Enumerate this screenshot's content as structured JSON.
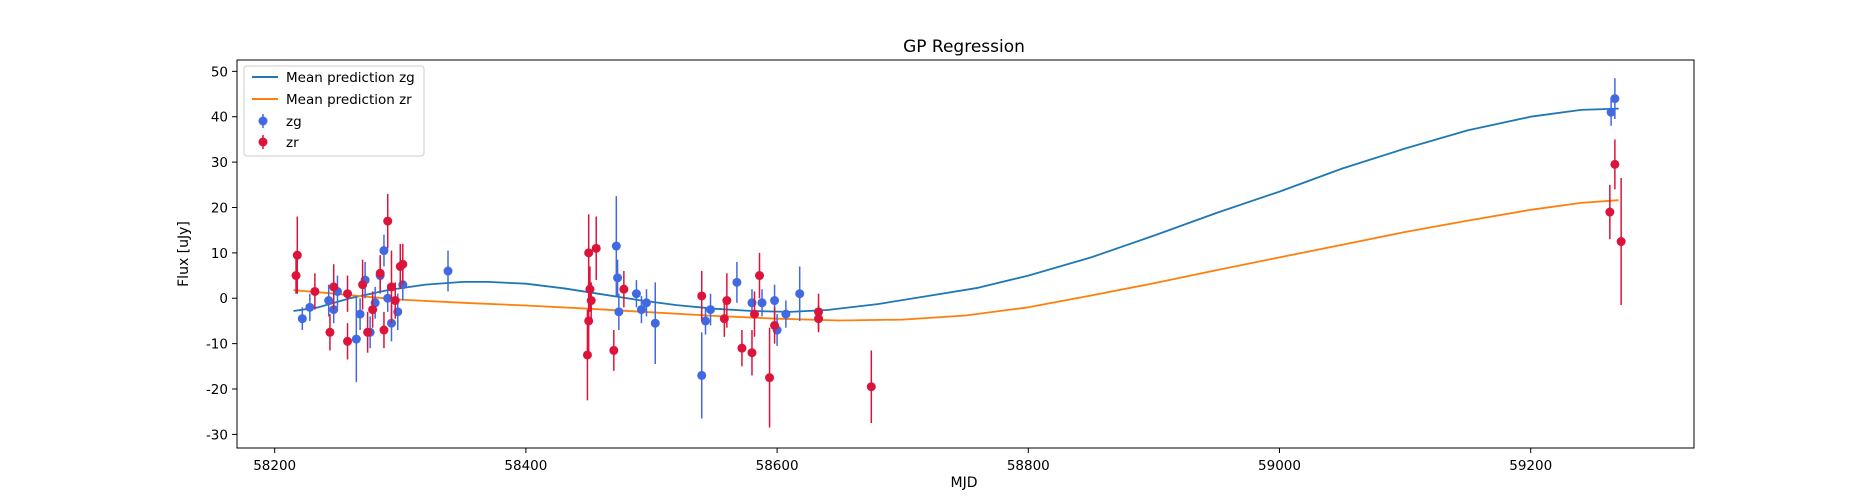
{
  "chart_data": {
    "type": "scatter",
    "title": "GP Regression",
    "xlabel": "MJD",
    "ylabel": "Flux [uJy]",
    "xlim": [
      58170,
      59330
    ],
    "ylim": [
      -33,
      52.5
    ],
    "xticks": [
      58200,
      58400,
      58600,
      58800,
      59000,
      59200
    ],
    "yticks": [
      -30,
      -20,
      -10,
      0,
      10,
      20,
      30,
      40,
      50
    ],
    "grid": false,
    "legend_position": "top-left",
    "colors": {
      "zg_points": "#4169e1",
      "zr_points": "#dc143c",
      "zg_line": "#1f77b4",
      "zr_line": "#ff7f0e"
    },
    "lines": [
      {
        "name": "Mean prediction zg",
        "color": "#1f77b4",
        "x": [
          58215,
          58235,
          58260,
          58290,
          58320,
          58350,
          58370,
          58400,
          58430,
          58460,
          58490,
          58520,
          58550,
          58580,
          58610,
          58640,
          58680,
          58720,
          58760,
          58800,
          58850,
          58900,
          58950,
          59000,
          59050,
          59100,
          59150,
          59200,
          59240,
          59270
        ],
        "y": [
          -2.8,
          -2.0,
          0.0,
          1.8,
          3.0,
          3.6,
          3.6,
          3.2,
          2.2,
          0.9,
          -0.4,
          -1.5,
          -2.3,
          -2.8,
          -3.0,
          -2.6,
          -1.3,
          0.5,
          2.3,
          5.0,
          9.0,
          13.8,
          18.8,
          23.5,
          28.6,
          33.0,
          37.0,
          40.0,
          41.5,
          41.8
        ]
      },
      {
        "name": "Mean prediction zr",
        "color": "#ff7f0e",
        "x": [
          58215,
          58240,
          58270,
          58300,
          58350,
          58400,
          58450,
          58500,
          58550,
          58600,
          58650,
          58700,
          58750,
          58800,
          58850,
          58900,
          58950,
          59000,
          59050,
          59100,
          59150,
          59200,
          59240,
          59270
        ],
        "y": [
          1.8,
          1.2,
          0.4,
          -0.3,
          -1.0,
          -1.6,
          -2.3,
          -3.1,
          -3.9,
          -4.5,
          -4.9,
          -4.7,
          -3.8,
          -2.0,
          0.6,
          3.3,
          6.2,
          9.0,
          11.8,
          14.6,
          17.1,
          19.5,
          21.0,
          21.6
        ]
      }
    ],
    "series": [
      {
        "name": "zg",
        "color": "#4169e1",
        "points": [
          {
            "x": 58222,
            "y": -4.5,
            "err": 2.5
          },
          {
            "x": 58228,
            "y": -2.0,
            "err": 3.0
          },
          {
            "x": 58243,
            "y": -0.5,
            "err": 3.5
          },
          {
            "x": 58247,
            "y": -2.5,
            "err": 3.0
          },
          {
            "x": 58250,
            "y": 1.5,
            "err": 3.5
          },
          {
            "x": 58265,
            "y": -9.0,
            "err": 9.5
          },
          {
            "x": 58268,
            "y": -3.5,
            "err": 3.5
          },
          {
            "x": 58272,
            "y": 4.0,
            "err": 4.0
          },
          {
            "x": 58276,
            "y": -7.5,
            "err": 3.5
          },
          {
            "x": 58280,
            "y": -1.0,
            "err": 3.5
          },
          {
            "x": 58284,
            "y": 5.0,
            "err": 4.0
          },
          {
            "x": 58287,
            "y": 10.5,
            "err": 3.5
          },
          {
            "x": 58290,
            "y": 0.0,
            "err": 3.0
          },
          {
            "x": 58293,
            "y": -5.5,
            "err": 4.0
          },
          {
            "x": 58298,
            "y": -3.0,
            "err": 4.0
          },
          {
            "x": 58302,
            "y": 3.0,
            "err": 3.5
          },
          {
            "x": 58338,
            "y": 6.0,
            "err": 4.5
          },
          {
            "x": 58472,
            "y": 11.5,
            "err": 11.0
          },
          {
            "x": 58473,
            "y": 4.5,
            "err": 4.0
          },
          {
            "x": 58474,
            "y": -3.0,
            "err": 4.0
          },
          {
            "x": 58488,
            "y": 1.0,
            "err": 3.0
          },
          {
            "x": 58492,
            "y": -2.5,
            "err": 3.0
          },
          {
            "x": 58496,
            "y": -1.0,
            "err": 3.0
          },
          {
            "x": 58503,
            "y": -5.5,
            "err": 9.0
          },
          {
            "x": 58540,
            "y": -17.0,
            "err": 9.5
          },
          {
            "x": 58543,
            "y": -5.0,
            "err": 3.0
          },
          {
            "x": 58547,
            "y": -2.5,
            "err": 3.5
          },
          {
            "x": 58568,
            "y": 3.5,
            "err": 4.5
          },
          {
            "x": 58580,
            "y": -1.0,
            "err": 3.0
          },
          {
            "x": 58588,
            "y": -1.0,
            "err": 3.0
          },
          {
            "x": 58598,
            "y": -0.5,
            "err": 3.5
          },
          {
            "x": 58600,
            "y": -7.0,
            "err": 3.5
          },
          {
            "x": 58607,
            "y": -3.5,
            "err": 3.0
          },
          {
            "x": 58618,
            "y": 1.0,
            "err": 6.0
          },
          {
            "x": 59264,
            "y": 41.0,
            "err": 3.0
          },
          {
            "x": 59267,
            "y": 44.0,
            "err": 4.5
          }
        ]
      },
      {
        "name": "zr",
        "color": "#dc143c",
        "points": [
          {
            "x": 58217,
            "y": 5.0,
            "err": 4.0
          },
          {
            "x": 58218,
            "y": 9.5,
            "err": 8.5
          },
          {
            "x": 58232,
            "y": 1.5,
            "err": 4.0
          },
          {
            "x": 58244,
            "y": -7.5,
            "err": 4.0
          },
          {
            "x": 58247,
            "y": 2.5,
            "err": 5.0
          },
          {
            "x": 58258,
            "y": -9.5,
            "err": 4.0
          },
          {
            "x": 58258,
            "y": 1.0,
            "err": 4.0
          },
          {
            "x": 58270,
            "y": 3.0,
            "err": 5.5
          },
          {
            "x": 58274,
            "y": -7.5,
            "err": 4.5
          },
          {
            "x": 58278,
            "y": -2.5,
            "err": 4.0
          },
          {
            "x": 58284,
            "y": 5.5,
            "err": 4.0
          },
          {
            "x": 58287,
            "y": -7.0,
            "err": 4.0
          },
          {
            "x": 58290,
            "y": 17.0,
            "err": 6.0
          },
          {
            "x": 58293,
            "y": 2.5,
            "err": 8.0
          },
          {
            "x": 58296,
            "y": -0.5,
            "err": 4.0
          },
          {
            "x": 58300,
            "y": 7.0,
            "err": 5.0
          },
          {
            "x": 58302,
            "y": 7.5,
            "err": 4.5
          },
          {
            "x": 58449,
            "y": -12.5,
            "err": 10.0
          },
          {
            "x": 58450,
            "y": -5.0,
            "err": 7.0
          },
          {
            "x": 58450,
            "y": 10.0,
            "err": 8.5
          },
          {
            "x": 58451,
            "y": 2.0,
            "err": 5.0
          },
          {
            "x": 58452,
            "y": -0.5,
            "err": 4.0
          },
          {
            "x": 58456,
            "y": 11.0,
            "err": 7.0
          },
          {
            "x": 58470,
            "y": -11.5,
            "err": 4.5
          },
          {
            "x": 58478,
            "y": 2.0,
            "err": 4.0
          },
          {
            "x": 58540,
            "y": 0.5,
            "err": 5.5
          },
          {
            "x": 58558,
            "y": -4.5,
            "err": 4.0
          },
          {
            "x": 58560,
            "y": -0.5,
            "err": 6.0
          },
          {
            "x": 58572,
            "y": -11.0,
            "err": 4.0
          },
          {
            "x": 58580,
            "y": -12.0,
            "err": 5.0
          },
          {
            "x": 58582,
            "y": -3.5,
            "err": 5.0
          },
          {
            "x": 58586,
            "y": 5.0,
            "err": 5.0
          },
          {
            "x": 58594,
            "y": -17.5,
            "err": 11.0
          },
          {
            "x": 58598,
            "y": -6.0,
            "err": 4.0
          },
          {
            "x": 58633,
            "y": -3.0,
            "err": 4.0
          },
          {
            "x": 58633,
            "y": -4.5,
            "err": 3.0
          },
          {
            "x": 58675,
            "y": -19.5,
            "err": 8.0
          },
          {
            "x": 59263,
            "y": 19.0,
            "err": 6.0
          },
          {
            "x": 59267,
            "y": 29.5,
            "err": 5.5
          },
          {
            "x": 59272,
            "y": 12.5,
            "err": 14.0
          }
        ]
      }
    ]
  }
}
